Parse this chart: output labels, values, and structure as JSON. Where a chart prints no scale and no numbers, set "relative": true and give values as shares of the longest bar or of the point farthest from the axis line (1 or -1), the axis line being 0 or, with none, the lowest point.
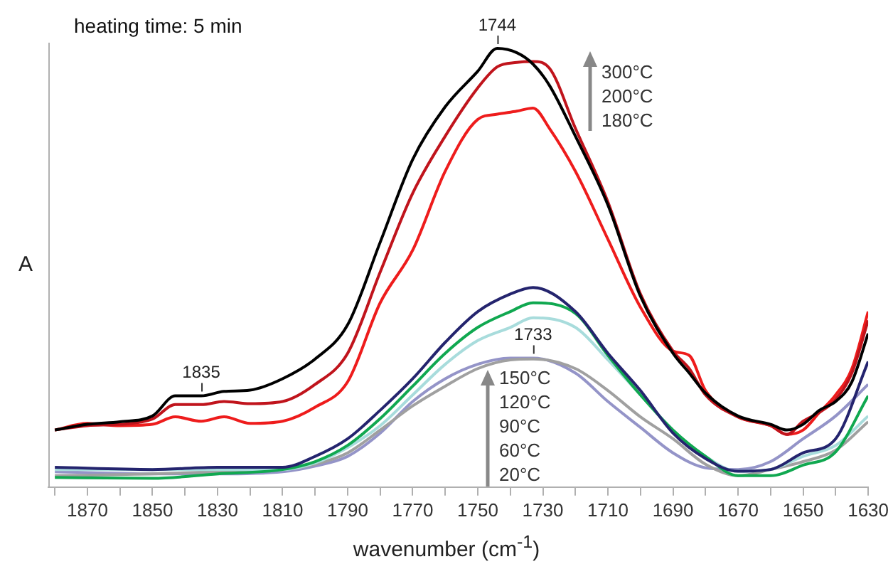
{
  "chart_data": {
    "type": "line",
    "relative": true,
    "xlabel": "wavenumber (cm$^{-1}$)",
    "ylabel": "A",
    "xlim": [
      1882,
      1630
    ],
    "xticks": [
      {
        "value": 1880,
        "label": null
      },
      1870,
      {
        "value": 1860,
        "label": null
      },
      1850,
      {
        "value": 1840,
        "label": null
      },
      1830,
      {
        "value": 1820,
        "label": null
      },
      1810,
      {
        "value": 1800,
        "label": null
      },
      1790,
      {
        "value": 1780,
        "label": null
      },
      1770,
      {
        "value": 1760,
        "label": null
      },
      1750,
      {
        "value": 1740,
        "label": null
      },
      1730,
      {
        "value": 1720,
        "label": null
      },
      1710,
      {
        "value": 1700,
        "label": null
      },
      1690,
      {
        "value": 1680,
        "label": null
      },
      1670,
      {
        "value": 1660,
        "label": null
      },
      1650,
      {
        "value": 1640,
        "label": null
      },
      1630
    ],
    "annotations": [
      "heating time: 5 min",
      {
        "text": "1744",
        "x": 1744,
        "y": 1
      },
      {
        "text": "1835",
        "x": 1835,
        "y": 0.208
      },
      {
        "text": "1733",
        "x": 1733,
        "y": 0.294
      },
      "300°C",
      "200°C",
      "180°C",
      "150°C",
      "120°C",
      "90°C",
      "60°C",
      "20°C"
    ],
    "marker": "none",
    "line_style": "solid",
    "series": [
      {
        "color": "#000000",
        "x": [
          1880,
          1870,
          1860,
          1850,
          1843,
          1835,
          1828,
          1820,
          1810,
          1800,
          1790,
          1780,
          1770,
          1760,
          1750,
          1744,
          1738,
          1733,
          1728,
          1720,
          1710,
          1700,
          1690,
          1685,
          1680,
          1670,
          1660,
          1655,
          1650,
          1645,
          1640,
          1635,
          1630
        ],
        "values": [
          0.13,
          0.143,
          0.149,
          0.162,
          0.208,
          0.208,
          0.218,
          0.221,
          0.247,
          0.292,
          0.37,
          0.558,
          0.747,
          0.867,
          0.948,
          1,
          0.99,
          0.964,
          0.916,
          0.8,
          0.643,
          0.435,
          0.305,
          0.26,
          0.214,
          0.162,
          0.143,
          0.13,
          0.143,
          0.175,
          0.195,
          0.24,
          0.35
        ]
      },
      {
        "color": "#c0141c",
        "x": [
          1880,
          1870,
          1860,
          1850,
          1843,
          1835,
          1828,
          1820,
          1810,
          1800,
          1790,
          1780,
          1770,
          1760,
          1750,
          1744,
          1738,
          1733,
          1728,
          1720,
          1710,
          1700,
          1690,
          1685,
          1680,
          1670,
          1660,
          1655,
          1650,
          1645,
          1640,
          1635,
          1630
        ],
        "values": [
          0.13,
          0.14,
          0.143,
          0.155,
          0.188,
          0.188,
          0.195,
          0.19,
          0.195,
          0.234,
          0.305,
          0.49,
          0.67,
          0.8,
          0.91,
          0.958,
          0.968,
          0.97,
          0.955,
          0.818,
          0.65,
          0.44,
          0.31,
          0.27,
          0.21,
          0.16,
          0.14,
          0.12,
          0.15,
          0.17,
          0.2,
          0.26,
          0.38
        ]
      },
      {
        "color": "#ee1c1c",
        "x": [
          1880,
          1870,
          1860,
          1850,
          1843,
          1835,
          1828,
          1820,
          1810,
          1800,
          1790,
          1780,
          1770,
          1760,
          1750,
          1744,
          1738,
          1733,
          1728,
          1720,
          1710,
          1700,
          1690,
          1685,
          1680,
          1670,
          1660,
          1655,
          1650,
          1645,
          1640,
          1635,
          1630
        ],
        "values": [
          0.13,
          0.145,
          0.14,
          0.143,
          0.16,
          0.15,
          0.16,
          0.145,
          0.15,
          0.182,
          0.24,
          0.42,
          0.54,
          0.72,
          0.838,
          0.85,
          0.857,
          0.864,
          0.818,
          0.72,
          0.565,
          0.41,
          0.31,
          0.3,
          0.22,
          0.16,
          0.14,
          0.12,
          0.13,
          0.17,
          0.21,
          0.27,
          0.4
        ]
      },
      {
        "color": "#24246e",
        "x": [
          1880,
          1850,
          1830,
          1810,
          1800,
          1790,
          1780,
          1770,
          1760,
          1750,
          1740,
          1733,
          1720,
          1710,
          1700,
          1690,
          1680,
          1670,
          1660,
          1650,
          1640,
          1630
        ],
        "values": [
          0.045,
          0.04,
          0.045,
          0.045,
          0.07,
          0.11,
          0.175,
          0.247,
          0.33,
          0.4,
          0.44,
          0.455,
          0.4,
          0.305,
          0.22,
          0.123,
          0.065,
          0.036,
          0.04,
          0.078,
          0.11,
          0.286
        ]
      },
      {
        "color": "#10a850",
        "x": [
          1880,
          1850,
          1830,
          1810,
          1800,
          1790,
          1780,
          1770,
          1760,
          1750,
          1740,
          1733,
          1720,
          1710,
          1700,
          1690,
          1680,
          1670,
          1660,
          1650,
          1640,
          1630
        ],
        "values": [
          0.022,
          0.02,
          0.03,
          0.04,
          0.058,
          0.095,
          0.156,
          0.23,
          0.305,
          0.364,
          0.4,
          0.42,
          0.396,
          0.3,
          0.21,
          0.13,
          0.07,
          0.026,
          0.026,
          0.05,
          0.08,
          0.208
        ]
      },
      {
        "color": "#a8dcdc",
        "x": [
          1880,
          1850,
          1830,
          1810,
          1800,
          1790,
          1780,
          1770,
          1760,
          1750,
          1740,
          1733,
          1720,
          1710,
          1700,
          1690,
          1680,
          1670,
          1660,
          1650,
          1640,
          1630
        ],
        "values": [
          0.04,
          0.04,
          0.04,
          0.04,
          0.055,
          0.09,
          0.14,
          0.21,
          0.28,
          0.334,
          0.364,
          0.386,
          0.364,
          0.29,
          0.21,
          0.13,
          0.07,
          0.036,
          0.04,
          0.07,
          0.095,
          0.162
        ]
      },
      {
        "color": "#a0a0a0",
        "x": [
          1880,
          1850,
          1830,
          1810,
          1800,
          1790,
          1780,
          1770,
          1760,
          1750,
          1740,
          1733,
          1720,
          1710,
          1700,
          1690,
          1680,
          1670,
          1660,
          1650,
          1640,
          1630
        ],
        "values": [
          0.026,
          0.03,
          0.035,
          0.04,
          0.052,
          0.078,
          0.13,
          0.185,
          0.23,
          0.27,
          0.29,
          0.292,
          0.27,
          0.22,
          0.16,
          0.11,
          0.052,
          0.026,
          0.04,
          0.058,
          0.084,
          0.149
        ]
      },
      {
        "color": "#9494c8",
        "x": [
          1880,
          1850,
          1830,
          1810,
          1800,
          1790,
          1780,
          1770,
          1760,
          1750,
          1740,
          1733,
          1720,
          1710,
          1700,
          1690,
          1680,
          1670,
          1660,
          1650,
          1640,
          1630
        ],
        "values": [
          0.035,
          0.03,
          0.03,
          0.035,
          0.048,
          0.07,
          0.123,
          0.195,
          0.247,
          0.28,
          0.294,
          0.294,
          0.26,
          0.195,
          0.136,
          0.078,
          0.044,
          0.04,
          0.058,
          0.11,
          0.162,
          0.234
        ]
      }
    ]
  }
}
